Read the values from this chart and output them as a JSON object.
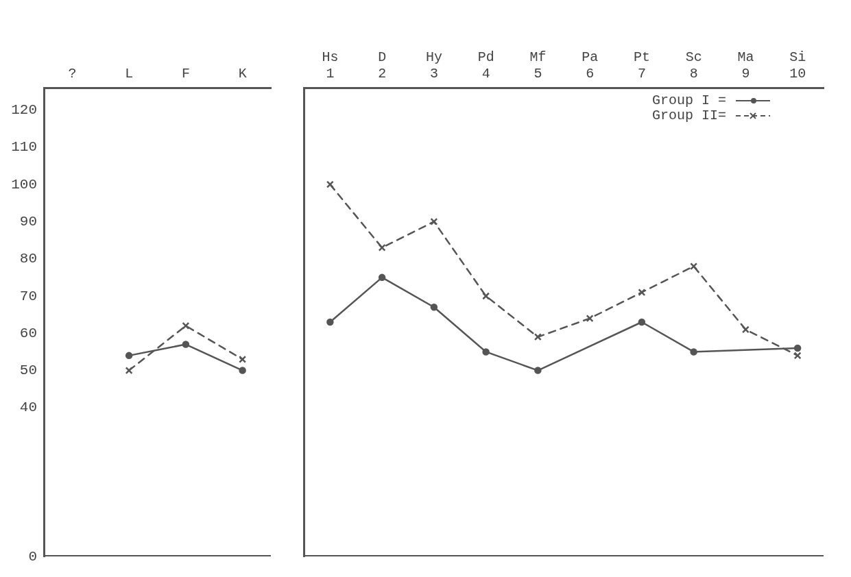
{
  "chart_data": [
    {
      "type": "line",
      "categories": [
        "?",
        "L",
        "F",
        "K"
      ],
      "ylim": [
        0,
        126
      ],
      "yticks": [
        0,
        40,
        50,
        60,
        70,
        80,
        90,
        100,
        110,
        120
      ],
      "grid": false,
      "legend": false,
      "tick_labels": "xy",
      "series": [
        {
          "color": "#555555",
          "marker": "circle",
          "line_style": "solid",
          "values": [
            null,
            54,
            57,
            50
          ]
        },
        {
          "color": "#555555",
          "marker": "cross",
          "line_style": "dashed",
          "values": [
            null,
            50,
            62,
            53
          ]
        }
      ]
    },
    {
      "type": "line",
      "categories": [
        "Hs\n1",
        "D\n2",
        "Hy\n3",
        "Pd\n4",
        "Mf\n5",
        "Pa\n6",
        "Pt\n7",
        "Sc\n8",
        "Ma\n9",
        "Si\n10"
      ],
      "ylim": [
        0,
        126
      ],
      "yticks": [
        0,
        40,
        50,
        60,
        70,
        80,
        90,
        100,
        110,
        120
      ],
      "grid": false,
      "legend": "top right",
      "tick_labels": "x",
      "series": [
        {
          "name": "Group I =",
          "color": "#555555",
          "marker": "circle",
          "line_style": "solid",
          "values": [
            63,
            75,
            67,
            55,
            50,
            null,
            63,
            55,
            null,
            56
          ]
        },
        {
          "name": "Group II=",
          "color": "#555555",
          "marker": "cross",
          "line_style": "dashed",
          "values": [
            100,
            83,
            90,
            70,
            59,
            64,
            71,
            78,
            61,
            54
          ]
        }
      ]
    }
  ]
}
